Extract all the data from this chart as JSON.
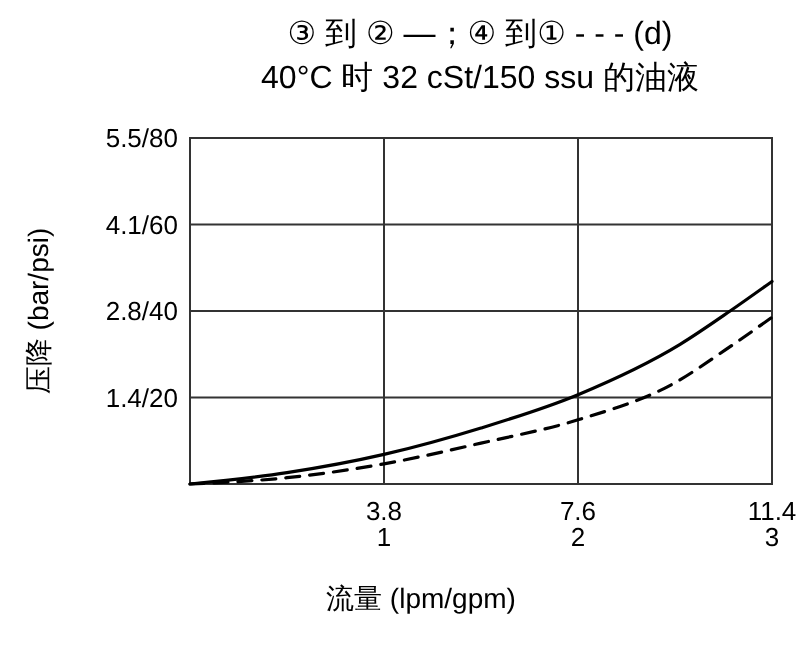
{
  "chart_data": {
    "type": "line",
    "title": "③ 到 ② —；④ 到① - - - (d)",
    "subtitle": "40°C 时 32 cSt/150 ssu 的油液",
    "xlabel": "流量 (lpm/gpm)",
    "ylabel": "压降 (bar/psi)",
    "xlim": [
      0,
      11.4
    ],
    "xticks": [
      3.8,
      7.6,
      11.4
    ],
    "x2lim": [
      0,
      3
    ],
    "x2ticks": [
      1,
      2,
      3
    ],
    "ylim": [
      0,
      5.5
    ],
    "yticks": [
      {
        "value": 1.375,
        "label": "1.4"
      },
      {
        "value": 2.75,
        "label": "2.8"
      },
      {
        "value": 4.125,
        "label": "4.1"
      },
      {
        "value": 5.5,
        "label": "5.5"
      }
    ],
    "y2lim": [
      0,
      80
    ],
    "y2ticks": [
      {
        "value": 20,
        "label": "/20"
      },
      {
        "value": 40,
        "label": "/40"
      },
      {
        "value": 60,
        "label": "/60"
      },
      {
        "value": 80,
        "label": "/80"
      }
    ],
    "grid": true,
    "marker": "none",
    "series": [
      {
        "color": "#000000",
        "line_style": "solid",
        "x": [
          0,
          1.9,
          3.8,
          5.7,
          7.6,
          9.6,
          10.58,
          11.4
        ],
        "values": [
          0,
          0.18,
          0.47,
          0.89,
          1.42,
          2.22,
          2.75,
          3.22
        ]
      },
      {
        "color": "#000000",
        "line_style": "dashed",
        "x": [
          0,
          1.9,
          3.8,
          5.7,
          7.6,
          9.5,
          10.5,
          11.4
        ],
        "values": [
          0,
          0.1,
          0.32,
          0.65,
          1.02,
          1.61,
          2.14,
          2.65
        ]
      }
    ]
  }
}
